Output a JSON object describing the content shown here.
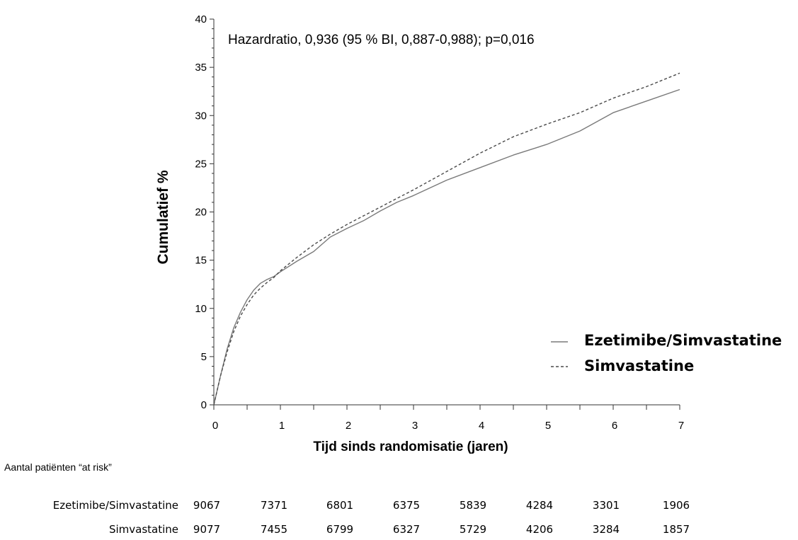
{
  "chart_data": {
    "type": "line",
    "annotation": "Hazardratio, 0,936 (95 % BI, 0,887-0,988); p=0,016",
    "xlabel": "Tijd sinds randomisatie (jaren)",
    "ylabel": "Cumulatief %",
    "xlim": [
      0,
      7
    ],
    "ylim": [
      0,
      40
    ],
    "x_ticks": [
      0,
      1,
      2,
      3,
      4,
      5,
      6,
      7
    ],
    "y_ticks": [
      0,
      5,
      10,
      15,
      20,
      25,
      30,
      35,
      40
    ],
    "legend_position": "bottom-right",
    "series": [
      {
        "name": "Ezetimibe/Simvastatine",
        "style": "solid",
        "color": "#7a7a7a",
        "points": [
          [
            0,
            0
          ],
          [
            0.1,
            3
          ],
          [
            0.2,
            5.8
          ],
          [
            0.3,
            8
          ],
          [
            0.4,
            9.6
          ],
          [
            0.5,
            10.9
          ],
          [
            0.6,
            11.9
          ],
          [
            0.7,
            12.6
          ],
          [
            0.8,
            13
          ],
          [
            0.9,
            13.3
          ],
          [
            1,
            13.8
          ],
          [
            1.25,
            14.9
          ],
          [
            1.5,
            15.9
          ],
          [
            1.75,
            17.4
          ],
          [
            2,
            18.3
          ],
          [
            2.25,
            19.1
          ],
          [
            2.5,
            20.1
          ],
          [
            2.75,
            21
          ],
          [
            3,
            21.7
          ],
          [
            3.5,
            23.3
          ],
          [
            4,
            24.6
          ],
          [
            4.5,
            25.9
          ],
          [
            5,
            27
          ],
          [
            5.5,
            28.4
          ],
          [
            6,
            30.3
          ],
          [
            6.5,
            31.5
          ],
          [
            7,
            32.7
          ]
        ]
      },
      {
        "name": "Simvastatine",
        "style": "dashed",
        "color": "#4a4a4a",
        "points": [
          [
            0,
            0
          ],
          [
            0.1,
            3
          ],
          [
            0.2,
            5.5
          ],
          [
            0.3,
            7.6
          ],
          [
            0.4,
            9.2
          ],
          [
            0.5,
            10.4
          ],
          [
            0.6,
            11.4
          ],
          [
            0.7,
            12.1
          ],
          [
            0.8,
            12.7
          ],
          [
            0.9,
            13.2
          ],
          [
            1,
            13.9
          ],
          [
            1.25,
            15.3
          ],
          [
            1.5,
            16.6
          ],
          [
            1.75,
            17.7
          ],
          [
            2,
            18.7
          ],
          [
            2.25,
            19.6
          ],
          [
            2.5,
            20.5
          ],
          [
            2.75,
            21.4
          ],
          [
            3,
            22.3
          ],
          [
            3.5,
            24.2
          ],
          [
            4,
            26.1
          ],
          [
            4.5,
            27.8
          ],
          [
            5,
            29.1
          ],
          [
            5.5,
            30.3
          ],
          [
            6,
            31.8
          ],
          [
            6.5,
            33
          ],
          [
            7,
            34.4
          ]
        ]
      }
    ]
  },
  "risk_table": {
    "title": "Aantal patiënten “at risk”",
    "rows": [
      {
        "label": "Ezetimibe/Simvastatine",
        "values": [
          "9067",
          "7371",
          "6801",
          "6375",
          "5839",
          "4284",
          "3301",
          "1906"
        ]
      },
      {
        "label": "Simvastatine",
        "values": [
          "9077",
          "7455",
          "6799",
          "6327",
          "5729",
          "4206",
          "3284",
          "1857"
        ]
      }
    ]
  }
}
